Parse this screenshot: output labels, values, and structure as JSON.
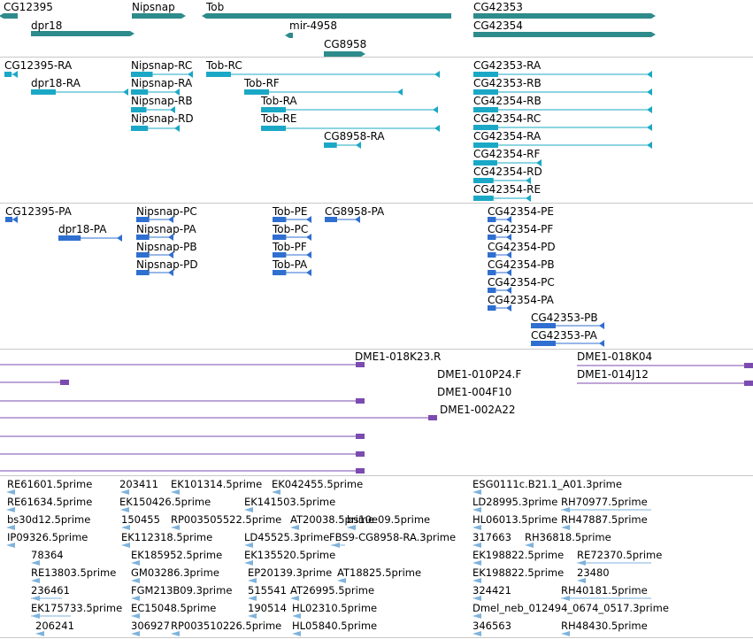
{
  "colors": {
    "gene": "#2e8b8b",
    "mrna": "#1ba8c6",
    "cds": "#2f6fd0",
    "clone": "#7b4bb0",
    "est": "#7fb3dc",
    "separator": "#c8c8c8"
  },
  "tracks": [
    {
      "name": "gene-track",
      "features": [
        {
          "label": "CG12395",
          "shape": "gene",
          "strand": "-"
        },
        {
          "label": "dpr18",
          "shape": "gene",
          "strand": "+"
        },
        {
          "label": "Nipsnap",
          "shape": "gene",
          "strand": "+"
        },
        {
          "label": "Tob",
          "shape": "gene",
          "strand": "-"
        },
        {
          "label": "mir-4958",
          "shape": "gene",
          "strand": "-"
        },
        {
          "label": "CG8958",
          "shape": "gene",
          "strand": "+"
        },
        {
          "label": "CG42353",
          "shape": "gene",
          "strand": "+"
        },
        {
          "label": "CG42354",
          "shape": "gene",
          "strand": "+"
        }
      ]
    },
    {
      "name": "transcript-track",
      "features": [
        {
          "label": "CG12395-RA",
          "shape": "mrna"
        },
        {
          "label": "dpr18-RA",
          "shape": "mrna"
        },
        {
          "label": "Nipsnap-RC",
          "shape": "mrna"
        },
        {
          "label": "Nipsnap-RA",
          "shape": "mrna"
        },
        {
          "label": "Nipsnap-RB",
          "shape": "mrna"
        },
        {
          "label": "Nipsnap-RD",
          "shape": "mrna"
        },
        {
          "label": "Tob-RC",
          "shape": "mrna"
        },
        {
          "label": "Tob-RF",
          "shape": "mrna"
        },
        {
          "label": "Tob-RA",
          "shape": "mrna"
        },
        {
          "label": "Tob-RE",
          "shape": "mrna"
        },
        {
          "label": "CG8958-RA",
          "shape": "mrna"
        },
        {
          "label": "CG42353-RA",
          "shape": "mrna"
        },
        {
          "label": "CG42353-RB",
          "shape": "mrna"
        },
        {
          "label": "CG42354-RB",
          "shape": "mrna"
        },
        {
          "label": "CG42354-RC",
          "shape": "mrna"
        },
        {
          "label": "CG42354-RA",
          "shape": "mrna"
        },
        {
          "label": "CG42354-RF",
          "shape": "mrna"
        },
        {
          "label": "CG42354-RD",
          "shape": "mrna"
        },
        {
          "label": "CG42354-RE",
          "shape": "mrna"
        }
      ]
    },
    {
      "name": "protein-track",
      "features": [
        {
          "label": "CG12395-PA",
          "shape": "cds"
        },
        {
          "label": "dpr18-PA",
          "shape": "cds"
        },
        {
          "label": "Nipsnap-PC",
          "shape": "cds"
        },
        {
          "label": "Nipsnap-PA",
          "shape": "cds"
        },
        {
          "label": "Nipsnap-PB",
          "shape": "cds"
        },
        {
          "label": "Nipsnap-PD",
          "shape": "cds"
        },
        {
          "label": "Tob-PE",
          "shape": "cds"
        },
        {
          "label": "Tob-PC",
          "shape": "cds"
        },
        {
          "label": "Tob-PF",
          "shape": "cds"
        },
        {
          "label": "Tob-PA",
          "shape": "cds"
        },
        {
          "label": "CG8958-PA",
          "shape": "cds"
        },
        {
          "label": "CG42354-PE",
          "shape": "cds"
        },
        {
          "label": "CG42354-PF",
          "shape": "cds"
        },
        {
          "label": "CG42354-PD",
          "shape": "cds"
        },
        {
          "label": "CG42354-PB",
          "shape": "cds"
        },
        {
          "label": "CG42354-PC",
          "shape": "cds"
        },
        {
          "label": "CG42354-PA",
          "shape": "cds"
        },
        {
          "label": "CG42353-PB",
          "shape": "cds"
        },
        {
          "label": "CG42353-PA",
          "shape": "cds"
        }
      ]
    },
    {
      "name": "clone-track",
      "features": [
        {
          "label": "DME1-018K23.R",
          "shape": "clone"
        },
        {
          "label": "DME1-018K04",
          "shape": "clone"
        },
        {
          "label": "DME1-010P24.F",
          "shape": "clone"
        },
        {
          "label": "DME1-014J12",
          "shape": "clone"
        },
        {
          "label": "DME1-004F10",
          "shape": "clone"
        },
        {
          "label": "DME1-002A22",
          "shape": "clone"
        }
      ]
    },
    {
      "name": "est-track",
      "features": [
        {
          "label": "RE61601.5prime",
          "shape": "est"
        },
        {
          "label": "203411",
          "shape": "est"
        },
        {
          "label": "EK101314.5prime",
          "shape": "est"
        },
        {
          "label": "EK042455.5prime",
          "shape": "est"
        },
        {
          "label": "ESG0111c.B21.1_A01.3prime",
          "shape": "est"
        },
        {
          "label": "RE61634.5prime",
          "shape": "est"
        },
        {
          "label": "EK150426.5prime",
          "shape": "est"
        },
        {
          "label": "EK141503.5prime",
          "shape": "est"
        },
        {
          "label": "LD28995.3prime",
          "shape": "est"
        },
        {
          "label": "RH70977.5prime",
          "shape": "est"
        },
        {
          "label": "bs30d12.5prime",
          "shape": "est"
        },
        {
          "label": "150455",
          "shape": "est"
        },
        {
          "label": "RP003505522.5prime",
          "shape": "est"
        },
        {
          "label": "AT20038.5prime",
          "shape": "est"
        },
        {
          "label": "bs10e09.5prime",
          "shape": "est"
        },
        {
          "label": "HL06013.5prime",
          "shape": "est"
        },
        {
          "label": "RH47887.5prime",
          "shape": "est"
        },
        {
          "label": "IP09326.5prime",
          "shape": "est"
        },
        {
          "label": "EK112318.5prime",
          "shape": "est"
        },
        {
          "label": "LD45525.3prime",
          "shape": "est"
        },
        {
          "label": "FBS9-CG8958-RA.3prime",
          "shape": "est"
        },
        {
          "label": "317663",
          "shape": "est"
        },
        {
          "label": "RH36818.5prime",
          "shape": "est"
        },
        {
          "label": "78364",
          "shape": "est"
        },
        {
          "label": "EK185952.5prime",
          "shape": "est"
        },
        {
          "label": "EK135520.5prime",
          "shape": "est"
        },
        {
          "label": "EK198822.5prime",
          "shape": "est"
        },
        {
          "label": "RE72370.5prime",
          "shape": "est"
        },
        {
          "label": "RE13803.5prime",
          "shape": "est"
        },
        {
          "label": "GM03286.3prime",
          "shape": "est"
        },
        {
          "label": "EP20139.3prime",
          "shape": "est"
        },
        {
          "label": "AT18825.5prime",
          "shape": "est"
        },
        {
          "label": "EK198822.5prime",
          "shape": "est"
        },
        {
          "label": "23480",
          "shape": "est"
        },
        {
          "label": "236461",
          "shape": "est"
        },
        {
          "label": "FGM213B09.3prime",
          "shape": "est"
        },
        {
          "label": "515541",
          "shape": "est"
        },
        {
          "label": "AT26995.5prime",
          "shape": "est"
        },
        {
          "label": "324421",
          "shape": "est"
        },
        {
          "label": "RH40181.5prime",
          "shape": "est"
        },
        {
          "label": "EK175733.5prime",
          "shape": "est"
        },
        {
          "label": "EC15048.5prime",
          "shape": "est"
        },
        {
          "label": "190514",
          "shape": "est"
        },
        {
          "label": "HL02310.5prime",
          "shape": "est"
        },
        {
          "label": "Dmel_neb_012494_0674_0517.3prime",
          "shape": "est"
        },
        {
          "label": "206241",
          "shape": "est"
        },
        {
          "label": "306927",
          "shape": "est"
        },
        {
          "label": "RP003510226.5prime",
          "shape": "est"
        },
        {
          "label": "HL05840.5prime",
          "shape": "est"
        },
        {
          "label": "346563",
          "shape": "est"
        },
        {
          "label": "RH48430.5prime",
          "shape": "est"
        }
      ]
    }
  ]
}
